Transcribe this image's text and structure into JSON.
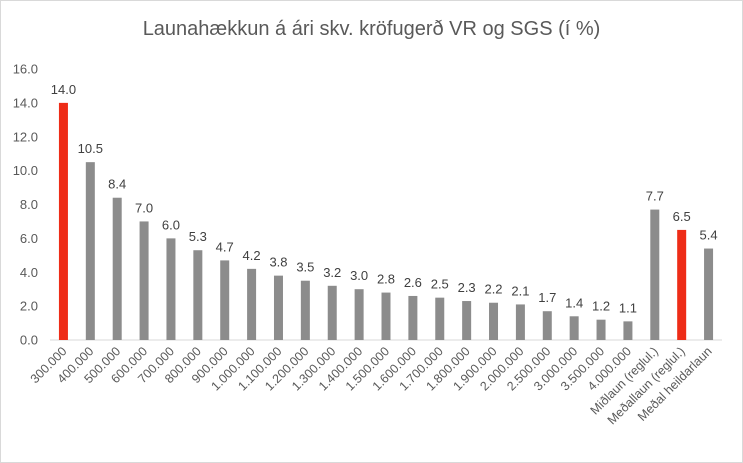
{
  "chart_data": {
    "type": "bar",
    "title": "Launahækkun á ári skv. kröfugerð VR og SGS (í %)",
    "xlabel": "",
    "ylabel": "",
    "ylim": [
      0,
      16
    ],
    "yticks": [
      "0.0",
      "2.0",
      "4.0",
      "6.0",
      "8.0",
      "10.0",
      "12.0",
      "14.0",
      "16.0"
    ],
    "grid": false,
    "legend": "none",
    "categories": [
      "300.000",
      "400.000",
      "500.000",
      "600.000",
      "700.000",
      "800.000",
      "900.000",
      "1.000.000",
      "1.100.000",
      "1.200.000",
      "1.300.000",
      "1.400.000",
      "1.500.000",
      "1.600.000",
      "1.700.000",
      "1.800.000",
      "1.900.000",
      "2.000.000",
      "2.500.000",
      "3.000.000",
      "3.500.000",
      "4.000.000",
      "Miðlaun (reglul.)",
      "Meðallaun (reglul.)",
      "Meðal heildarlaun"
    ],
    "values": [
      14.0,
      10.5,
      8.4,
      7.0,
      6.0,
      5.3,
      4.7,
      4.2,
      3.8,
      3.5,
      3.2,
      3.0,
      2.8,
      2.6,
      2.5,
      2.3,
      2.2,
      2.1,
      1.7,
      1.4,
      1.2,
      1.1,
      7.7,
      6.5,
      5.4
    ],
    "data_labels": [
      "14.0",
      "10.5",
      "8.4",
      "7.0",
      "6.0",
      "5.3",
      "4.7",
      "4.2",
      "3.8",
      "3.5",
      "3.2",
      "3.0",
      "2.8",
      "2.6",
      "2.5",
      "2.3",
      "2.2",
      "2.1",
      "1.7",
      "1.4",
      "1.2",
      "1.1",
      "7.7",
      "6.5",
      "5.4"
    ],
    "highlighted": [
      "300.000",
      "Meðallaun (reglul.)"
    ],
    "colors": {
      "default": "#8c8c8c",
      "highlight": "#ee2c17",
      "axis": "#d9d9d9",
      "text": "#595959"
    }
  }
}
